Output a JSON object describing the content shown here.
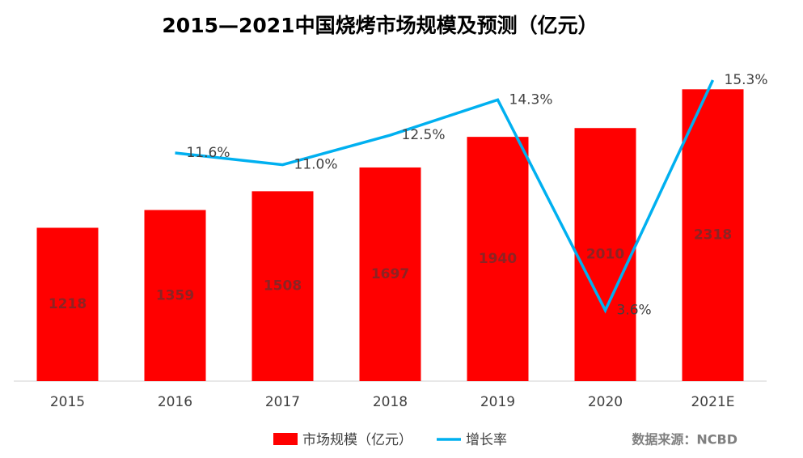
{
  "chart_data": {
    "type": "bar-line",
    "title": "2015—2021中国烧烤市场规模及预测（亿元）",
    "categories": [
      "2015",
      "2016",
      "2017",
      "2018",
      "2019",
      "2020",
      "2021E"
    ],
    "series": [
      {
        "name": "市场规模（亿元）",
        "type": "bar",
        "color": "#ff0000",
        "values": [
          1218,
          1359,
          1508,
          1697,
          1940,
          2010,
          2318
        ]
      },
      {
        "name": "增长率",
        "type": "line",
        "axis": "y2",
        "color": "#00b0f0",
        "values": [
          null,
          11.6,
          11.0,
          12.5,
          14.3,
          3.6,
          15.3
        ],
        "value_labels": [
          null,
          "11.6%",
          "11.0%",
          "12.5%",
          "14.3%",
          "3.6%",
          "15.3%"
        ]
      }
    ],
    "ylim": [
      0,
      2500
    ],
    "y2lim": [
      0,
      16
    ],
    "legend": "bottom",
    "source": "数据来源：NCBD"
  }
}
